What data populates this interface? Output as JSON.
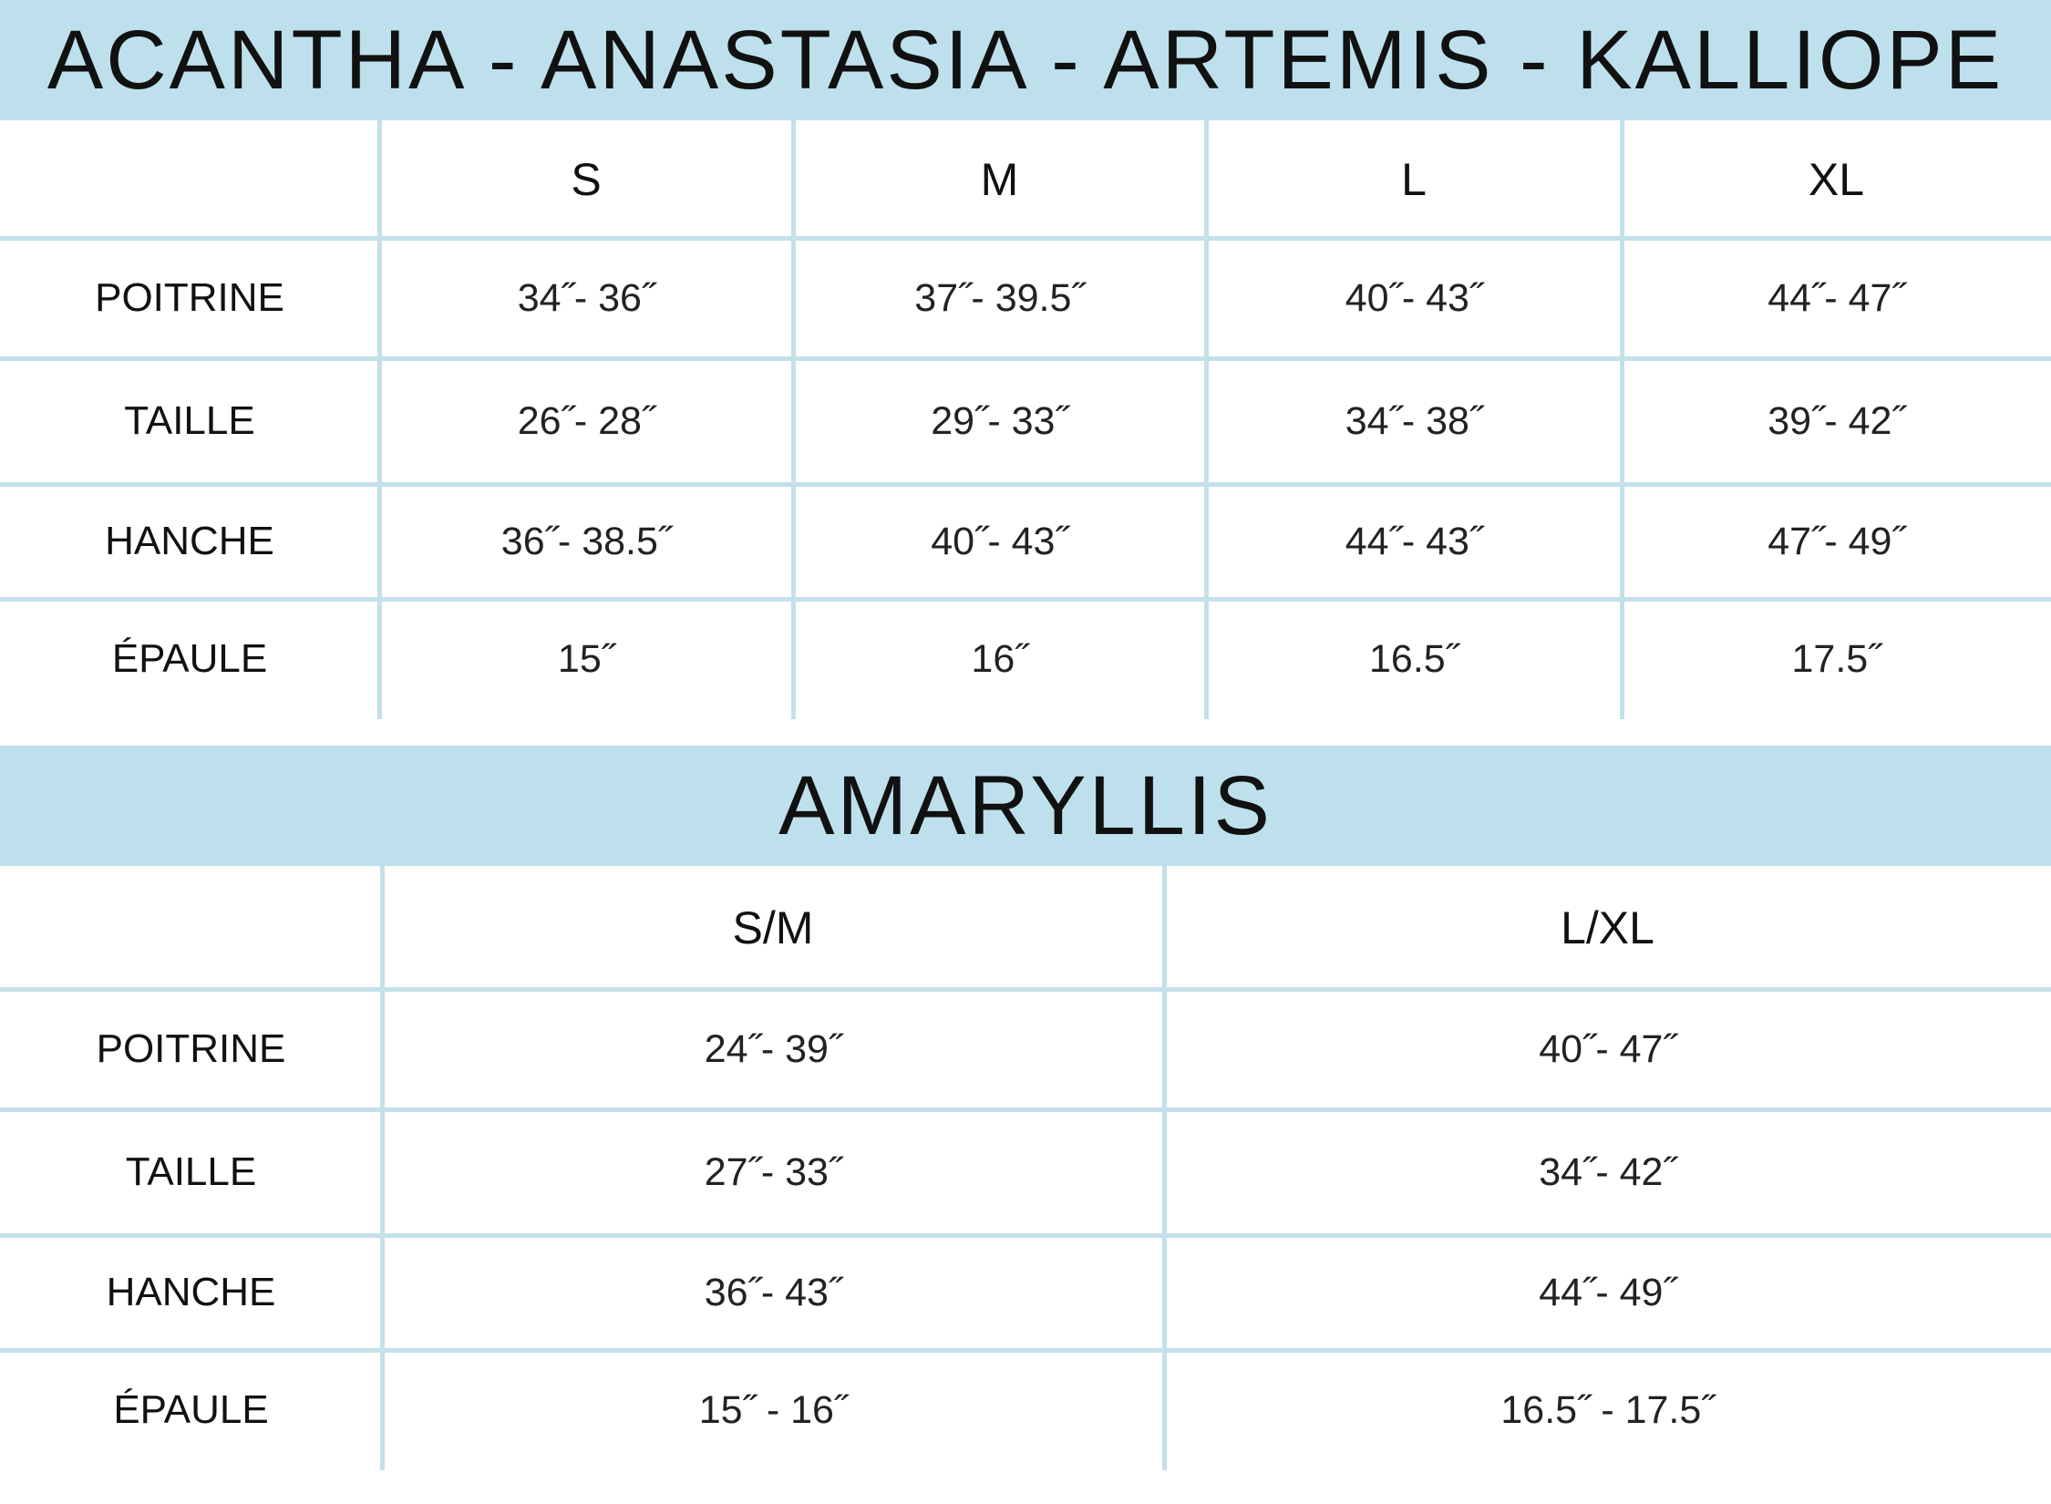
{
  "tables": [
    {
      "title": "ACANTHA - ANASTASIA - ARTEMIS - KALLIOPE",
      "columns": [
        "S",
        "M",
        "L",
        "XL"
      ],
      "rows": [
        {
          "label": "POITRINE",
          "cells": [
            "34˝- 36˝",
            "37˝- 39.5˝",
            "40˝- 43˝",
            "44˝- 47˝"
          ]
        },
        {
          "label": "TAILLE",
          "cells": [
            "26˝- 28˝",
            "29˝- 33˝",
            "34˝- 38˝",
            "39˝- 42˝"
          ]
        },
        {
          "label": "HANCHE",
          "cells": [
            "36˝- 38.5˝",
            "40˝- 43˝",
            "44˝- 43˝",
            "47˝- 49˝"
          ]
        },
        {
          "label": "ÉPAULE",
          "cells": [
            "15˝",
            "16˝",
            "16.5˝",
            "17.5˝"
          ]
        }
      ]
    },
    {
      "title": "AMARYLLIS",
      "columns": [
        "S/M",
        "L/XL"
      ],
      "rows": [
        {
          "label": "POITRINE",
          "cells": [
            "24˝- 39˝",
            "40˝- 47˝"
          ]
        },
        {
          "label": "TAILLE",
          "cells": [
            "27˝- 33˝",
            "34˝- 42˝"
          ]
        },
        {
          "label": "HANCHE",
          "cells": [
            "36˝- 43˝",
            "44˝- 49˝"
          ]
        },
        {
          "label": "ÉPAULE",
          "cells": [
            "15˝  - 16˝",
            "16.5˝  - 17.5˝"
          ]
        }
      ]
    }
  ]
}
